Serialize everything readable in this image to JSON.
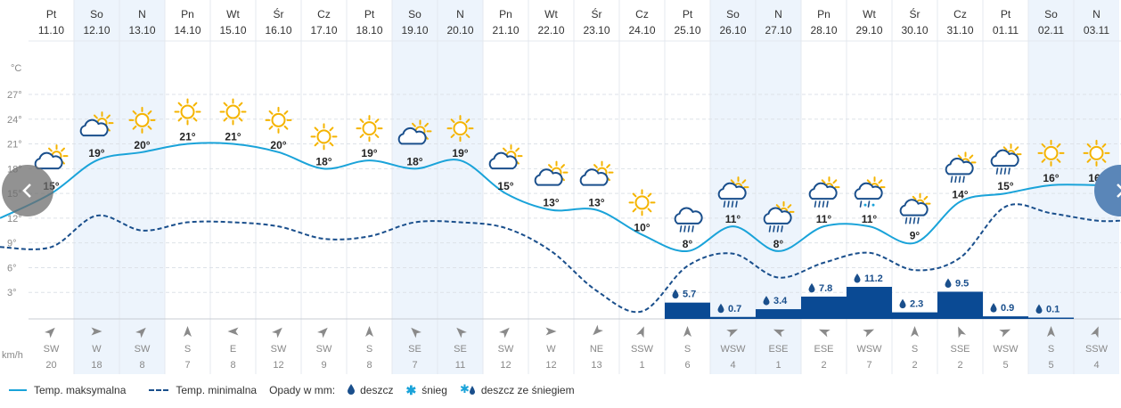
{
  "days": [
    {
      "abbr": "Pt",
      "date": "11.10",
      "icon": "partly-cloudy-icon",
      "tmax": "15°",
      "wdir": "SW",
      "wspd": "20",
      "wind_angle": 225,
      "weekend": false
    },
    {
      "abbr": "So",
      "date": "12.10",
      "icon": "partly-cloudy-icon",
      "tmax": "19°",
      "wdir": "W",
      "wspd": "18",
      "wind_angle": 270,
      "weekend": true
    },
    {
      "abbr": "N",
      "date": "13.10",
      "icon": "sun-icon",
      "tmax": "20°",
      "wdir": "SW",
      "wspd": "8",
      "wind_angle": 225,
      "weekend": true
    },
    {
      "abbr": "Pn",
      "date": "14.10",
      "icon": "sun-icon",
      "tmax": "21°",
      "wdir": "S",
      "wspd": "7",
      "wind_angle": 180,
      "weekend": false
    },
    {
      "abbr": "Wt",
      "date": "15.10",
      "icon": "sun-icon",
      "tmax": "21°",
      "wdir": "E",
      "wspd": "8",
      "wind_angle": 90,
      "weekend": false
    },
    {
      "abbr": "Śr",
      "date": "16.10",
      "icon": "sun-icon",
      "tmax": "20°",
      "wdir": "SW",
      "wspd": "12",
      "wind_angle": 225,
      "weekend": false
    },
    {
      "abbr": "Cz",
      "date": "17.10",
      "icon": "sun-icon",
      "tmax": "18°",
      "wdir": "SW",
      "wspd": "9",
      "wind_angle": 225,
      "weekend": false
    },
    {
      "abbr": "Pt",
      "date": "18.10",
      "icon": "sun-icon",
      "tmax": "19°",
      "wdir": "S",
      "wspd": "8",
      "wind_angle": 180,
      "weekend": false
    },
    {
      "abbr": "So",
      "date": "19.10",
      "icon": "partly-cloudy-icon",
      "tmax": "18°",
      "wdir": "SE",
      "wspd": "7",
      "wind_angle": 135,
      "weekend": true
    },
    {
      "abbr": "N",
      "date": "20.10",
      "icon": "sun-icon",
      "tmax": "19°",
      "wdir": "SE",
      "wspd": "11",
      "wind_angle": 135,
      "weekend": true
    },
    {
      "abbr": "Pn",
      "date": "21.10",
      "icon": "partly-cloudy-icon",
      "tmax": "15°",
      "wdir": "SW",
      "wspd": "12",
      "wind_angle": 225,
      "weekend": false
    },
    {
      "abbr": "Wt",
      "date": "22.10",
      "icon": "partly-cloudy-icon",
      "tmax": "13°",
      "wdir": "W",
      "wspd": "12",
      "wind_angle": 270,
      "weekend": false
    },
    {
      "abbr": "Śr",
      "date": "23.10",
      "icon": "partly-cloudy-icon",
      "tmax": "13°",
      "wdir": "NE",
      "wspd": "13",
      "wind_angle": 45,
      "weekend": false
    },
    {
      "abbr": "Cz",
      "date": "24.10",
      "icon": "sun-icon",
      "tmax": "10°",
      "wdir": "SSW",
      "wspd": "1",
      "wind_angle": 202,
      "weekend": false
    },
    {
      "abbr": "Pt",
      "date": "25.10",
      "icon": "rain-icon",
      "tmax": "8°",
      "wdir": "S",
      "wspd": "6",
      "wind_angle": 180,
      "weekend": false
    },
    {
      "abbr": "So",
      "date": "26.10",
      "icon": "sun-cloud-rain-icon",
      "tmax": "11°",
      "wdir": "WSW",
      "wspd": "4",
      "wind_angle": 247,
      "weekend": true
    },
    {
      "abbr": "N",
      "date": "27.10",
      "icon": "sun-cloud-rain-icon",
      "tmax": "8°",
      "wdir": "ESE",
      "wspd": "1",
      "wind_angle": 112,
      "weekend": true
    },
    {
      "abbr": "Pn",
      "date": "28.10",
      "icon": "sun-cloud-rain-icon",
      "tmax": "11°",
      "wdir": "ESE",
      "wspd": "2",
      "wind_angle": 112,
      "weekend": false
    },
    {
      "abbr": "Wt",
      "date": "29.10",
      "icon": "rain-snow-icon",
      "tmax": "11°",
      "wdir": "WSW",
      "wspd": "7",
      "wind_angle": 247,
      "weekend": false
    },
    {
      "abbr": "Śr",
      "date": "30.10",
      "icon": "sun-cloud-rain-icon",
      "tmax": "9°",
      "wdir": "S",
      "wspd": "2",
      "wind_angle": 180,
      "weekend": false
    },
    {
      "abbr": "Cz",
      "date": "31.10",
      "icon": "sun-cloud-rain-icon",
      "tmax": "14°",
      "wdir": "SSE",
      "wspd": "2",
      "wind_angle": 157,
      "weekend": false
    },
    {
      "abbr": "Pt",
      "date": "01.11",
      "icon": "sun-cloud-rain-icon",
      "tmax": "15°",
      "wdir": "WSW",
      "wspd": "5",
      "wind_angle": 247,
      "weekend": false
    },
    {
      "abbr": "So",
      "date": "02.11",
      "icon": "sun-icon",
      "tmax": "16°",
      "wdir": "S",
      "wspd": "5",
      "wind_angle": 180,
      "weekend": true
    },
    {
      "abbr": "N",
      "date": "03.11",
      "icon": "sun-icon",
      "tmax": "16°",
      "wdir": "SSW",
      "wspd": "4",
      "wind_angle": 202,
      "weekend": true
    }
  ],
  "chart_data": {
    "type": "line",
    "x": [
      "11.10",
      "12.10",
      "13.10",
      "14.10",
      "15.10",
      "16.10",
      "17.10",
      "18.10",
      "19.10",
      "20.10",
      "21.10",
      "22.10",
      "23.10",
      "24.10",
      "25.10",
      "26.10",
      "27.10",
      "28.10",
      "29.10",
      "30.10",
      "31.10",
      "01.11",
      "02.11",
      "03.11"
    ],
    "series": [
      {
        "name": "Temp. maksymalna",
        "style": "solid",
        "color": "#1aa3d9",
        "values": [
          15,
          19,
          20,
          21,
          21,
          20,
          18,
          19,
          18,
          19,
          15,
          13,
          13,
          10,
          8,
          11,
          8,
          11,
          11,
          9,
          14,
          15,
          16,
          16
        ]
      },
      {
        "name": "Temp. minimalna",
        "style": "dashed",
        "color": "#1a4f8c",
        "values": [
          8.5,
          12.3,
          10.5,
          11.5,
          11.5,
          11,
          9.5,
          9.8,
          11.5,
          11.5,
          10.8,
          8,
          3.2,
          0.7,
          6.2,
          7.7,
          4.8,
          6.6,
          7.8,
          5.7,
          7.2,
          13.4,
          12.6,
          11.7
        ]
      }
    ],
    "precipitation": {
      "name": "Opady w mm",
      "values": [
        null,
        null,
        null,
        null,
        null,
        null,
        null,
        null,
        null,
        null,
        null,
        null,
        null,
        null,
        5.7,
        0.7,
        3.4,
        7.8,
        11.2,
        2.3,
        9.5,
        0.9,
        0.1,
        null
      ],
      "labels": [
        null,
        null,
        null,
        null,
        null,
        null,
        null,
        null,
        null,
        null,
        null,
        null,
        null,
        null,
        "5.7",
        "0.7",
        "3.4",
        "7.8",
        "11.2",
        "2.3",
        "9.5",
        "0.9",
        "0.1",
        null
      ],
      "color": "#0a4a94"
    },
    "ylabel": "°C",
    "yticks": [
      "27°",
      "24°",
      "21°",
      "18°",
      "15°",
      "12°",
      "9°",
      "6°",
      "3°"
    ],
    "ytick_values": [
      27,
      24,
      21,
      18,
      15,
      12,
      9,
      6,
      3
    ],
    "ylim": [
      0,
      30
    ],
    "wind_label": "km/h",
    "grid": true
  },
  "legend": {
    "max_label": "Temp. maksymalna",
    "min_label": "Temp. minimalna",
    "precip_title": "Opady w mm:",
    "rain_label": "deszcz",
    "snow_label": "śnieg",
    "mix_label": "deszcz ze śniegiem"
  },
  "nav": {
    "prev": "‹",
    "next": "›"
  }
}
